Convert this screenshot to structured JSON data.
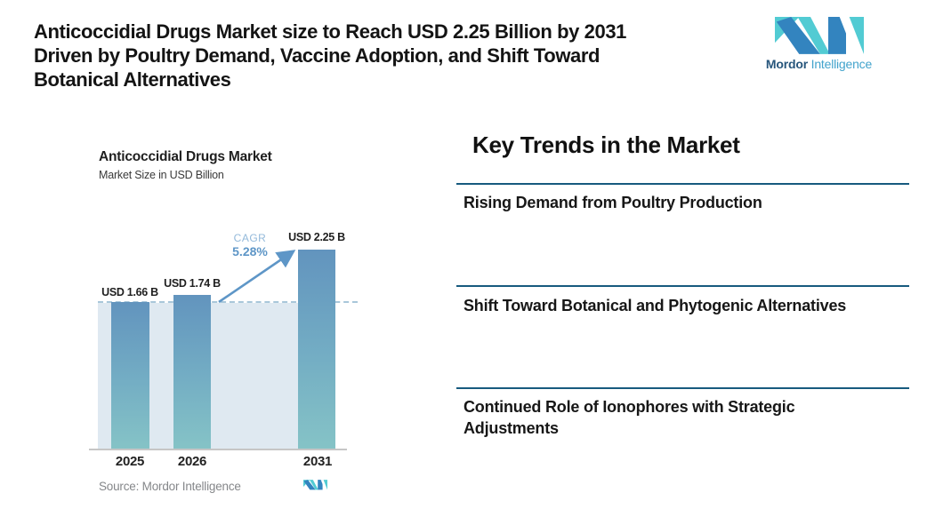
{
  "header": {
    "title_lines": [
      "Anticoccidial Drugs Market size to Reach USD 2.25 Billion by 2031",
      "Driven by Poultry Demand, Vaccine Adoption, and Shift Toward",
      "Botanical Alternatives"
    ],
    "logo": {
      "brand_bold": "Mordor",
      "brand_light": "Intelligence"
    }
  },
  "chart": {
    "title": "Anticoccidial Drugs Market",
    "subtitle": "Market Size in USD Billion",
    "cagr_label": "CAGR",
    "cagr_value": "5.28%",
    "source_note": "Source: Mordor Intelligence"
  },
  "chart_data": {
    "type": "bar",
    "title": "Anticoccidial Drugs Market",
    "subtitle": "Market Size in USD Billion",
    "categories": [
      "2025",
      "2026",
      "2031"
    ],
    "values": [
      1.66,
      1.74,
      2.25
    ],
    "bar_labels": [
      "USD 1.66 B",
      "USD 1.74 B",
      "USD 2.25 B"
    ],
    "unit": "USD Billion",
    "cagr_percent": 5.28,
    "baseline_dashed_at": 1.66,
    "ylim": [
      0,
      2.4
    ],
    "grid": false,
    "legend": "none",
    "annotations": [
      "CAGR 5.28% arrow from 2026 bar to 2031 bar"
    ],
    "colors": {
      "bar_gradient_top": "#6294be",
      "bar_gradient_bottom": "#85c3c6",
      "shaded_region": "#dfe9f1",
      "dashed_line": "#a9c7da",
      "arrow": "#5e96c7",
      "cagr_label_text": "#93b9da",
      "divider": "#175a7e",
      "logo_blue": "#3384bf",
      "logo_teal": "#52cbd3"
    }
  },
  "key_trends": {
    "heading": "Key Trends in the Market",
    "items": [
      "Rising Demand from Poultry Production",
      "Shift Toward Botanical and Phytogenic Alternatives",
      "Continued Role of Ionophores with Strategic Adjustments"
    ]
  }
}
